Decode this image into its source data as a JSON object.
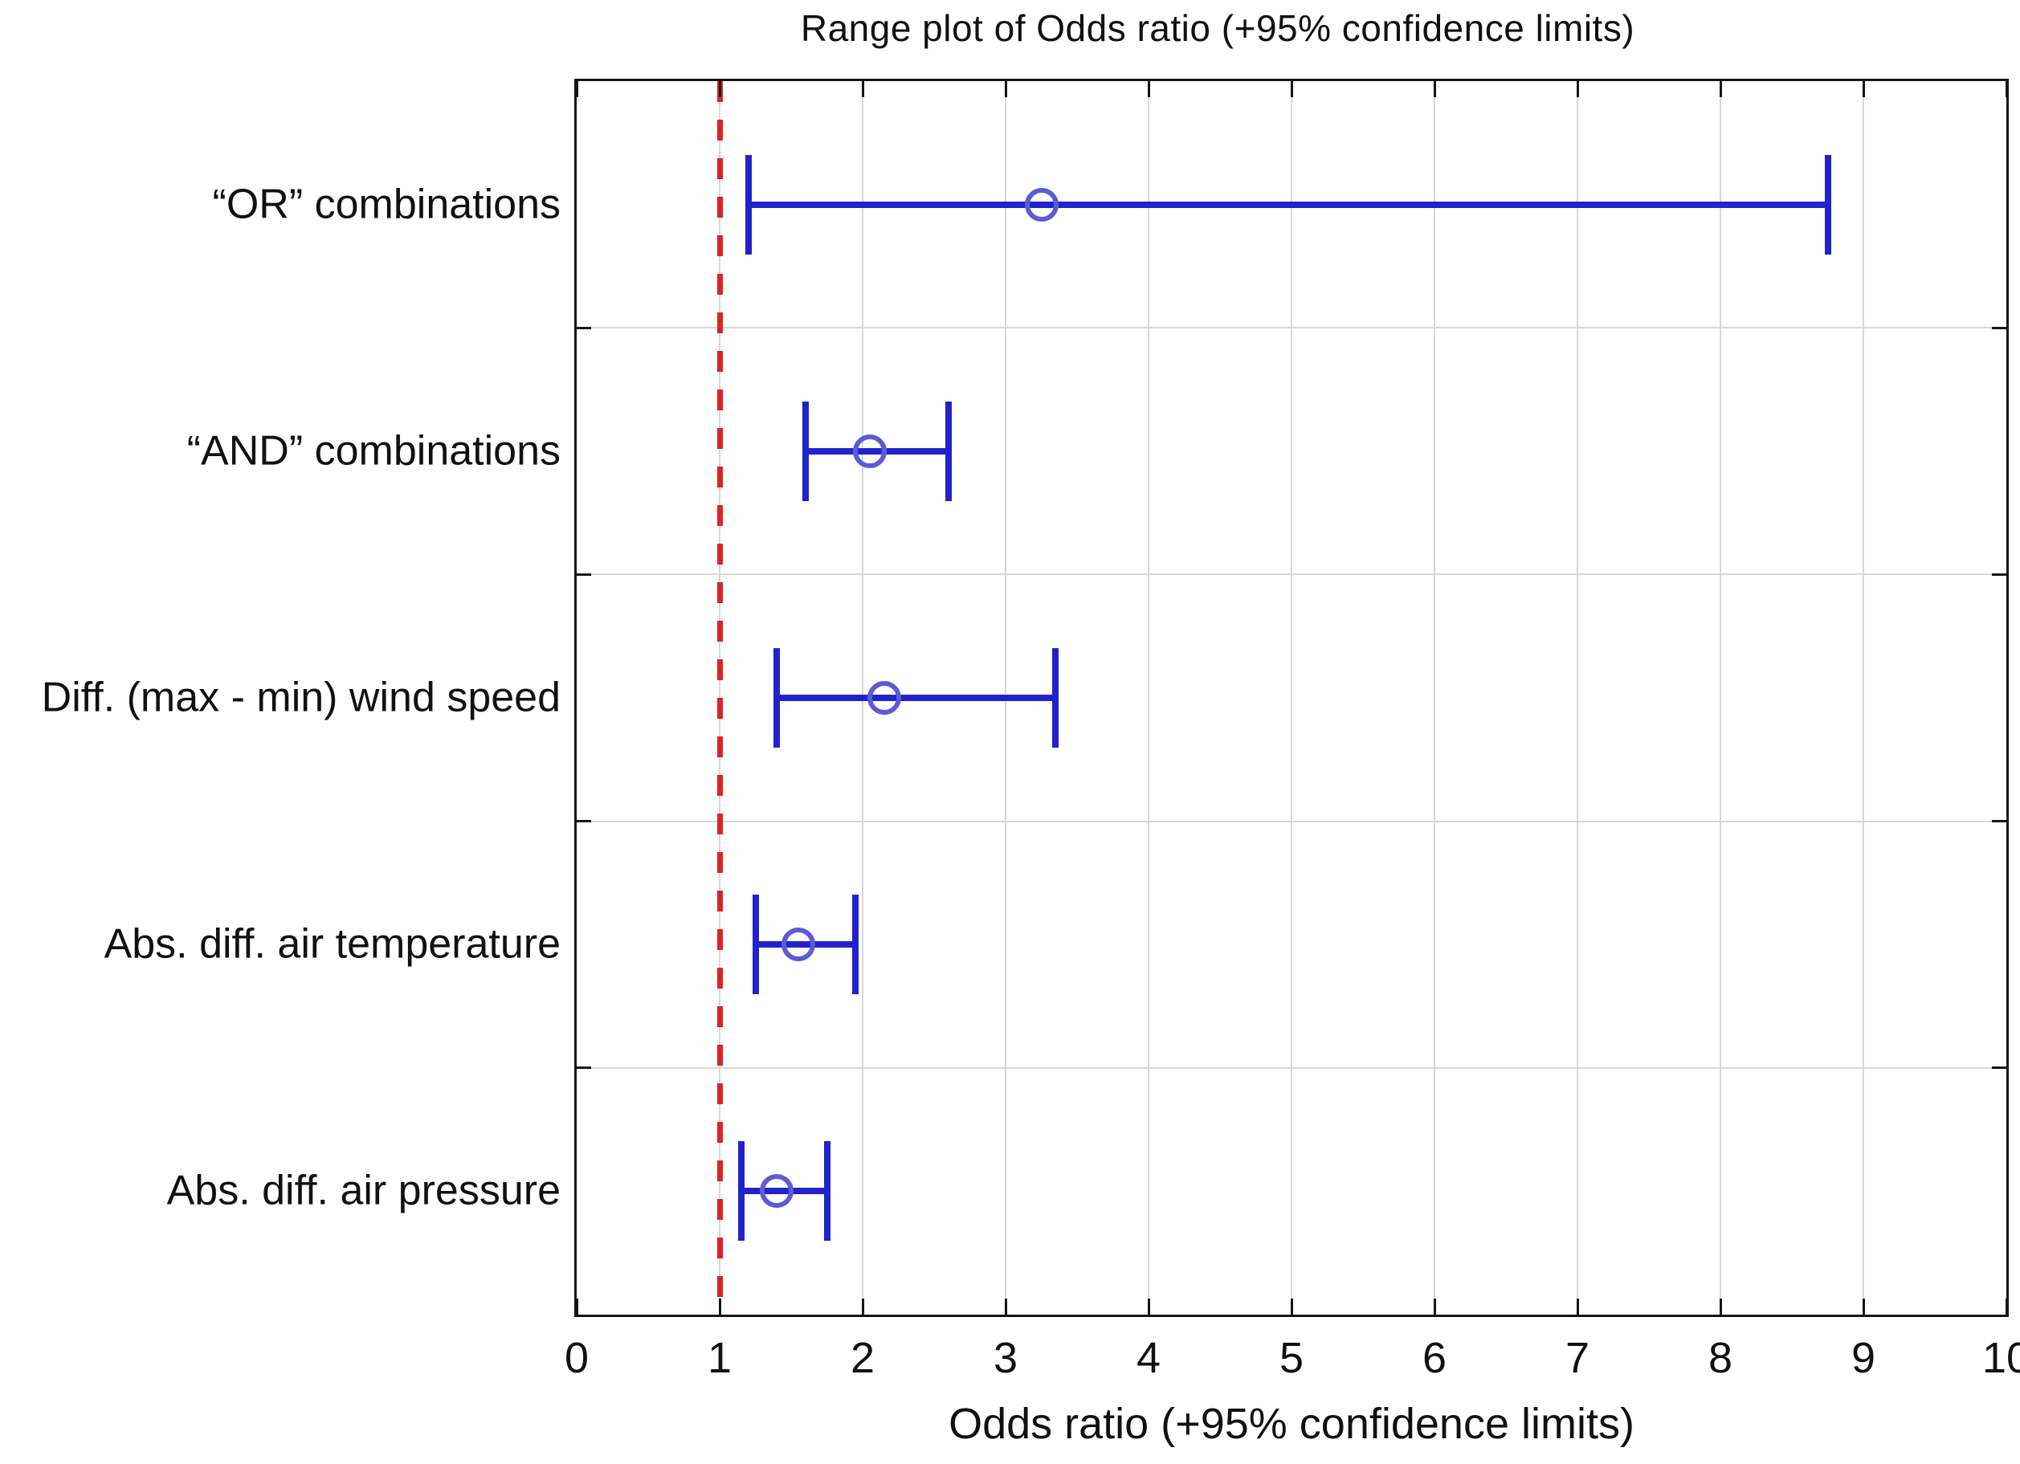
{
  "chart_data": {
    "type": "range",
    "title": "Range plot of Odds ratio (+95% confidence limits)",
    "xlabel": "Odds ratio (+95% confidence limits)",
    "xlim": [
      0,
      10
    ],
    "xticks": [
      0,
      1,
      2,
      3,
      4,
      5,
      6,
      7,
      8,
      9,
      10
    ],
    "grid": true,
    "legend": false,
    "reference_line": {
      "x": 1,
      "style": "dashed",
      "color": "#dd2424"
    },
    "categories": [
      "“OR” combinations",
      "“AND” combinations",
      "Diff. (max - min) wind speed",
      "Abs. diff. air temperature",
      "Abs. diff. air pressure"
    ],
    "series": [
      {
        "name": "Odds ratio (+95% confidence limits)",
        "points": [
          {
            "category": "“OR” combinations",
            "center": 3.25,
            "low": 1.2,
            "high": 8.75
          },
          {
            "category": "“AND” combinations",
            "center": 2.05,
            "low": 1.6,
            "high": 2.6
          },
          {
            "category": "Diff. (max - min) wind speed",
            "center": 2.15,
            "low": 1.4,
            "high": 3.35
          },
          {
            "category": "Abs. diff. air temperature",
            "center": 1.55,
            "low": 1.25,
            "high": 1.95
          },
          {
            "category": "Abs. diff. air pressure",
            "center": 1.4,
            "low": 1.15,
            "high": 1.75
          }
        ]
      }
    ]
  },
  "colors": {
    "bar": "#2222cc",
    "marker_ring": "#5b5bd6",
    "reference": "#dd2424",
    "grid": "#d8d8d8",
    "frame": "#161616",
    "background": "#ffffff"
  }
}
